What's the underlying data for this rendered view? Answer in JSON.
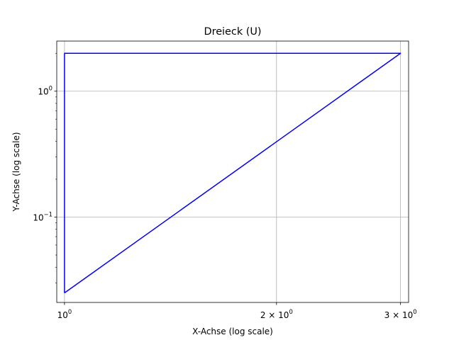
{
  "chart_data": {
    "type": "line",
    "title": "Dreieck (U)",
    "xlabel": "X-Achse (log scale)",
    "ylabel": "Y-Achse (log scale)",
    "xscale": "log",
    "yscale": "log",
    "xlim": [
      0.975,
      3.08
    ],
    "ylim": [
      0.021,
      2.5
    ],
    "grid": true,
    "x_ticks": [
      {
        "value": 1,
        "base": "10",
        "exp": "0",
        "prefix": ""
      },
      {
        "value": 2,
        "base": "10",
        "exp": "0",
        "prefix": "2 × "
      },
      {
        "value": 3,
        "base": "10",
        "exp": "0",
        "prefix": "3 × "
      }
    ],
    "y_ticks": [
      {
        "value": 0.1,
        "base": "10",
        "exp": "−1",
        "prefix": ""
      },
      {
        "value": 1,
        "base": "10",
        "exp": "0",
        "prefix": ""
      }
    ],
    "series": [
      {
        "color": "#0000ff",
        "x": [
          1,
          1,
          3,
          1
        ],
        "y": [
          0.025,
          2,
          2,
          0.025
        ]
      }
    ]
  }
}
